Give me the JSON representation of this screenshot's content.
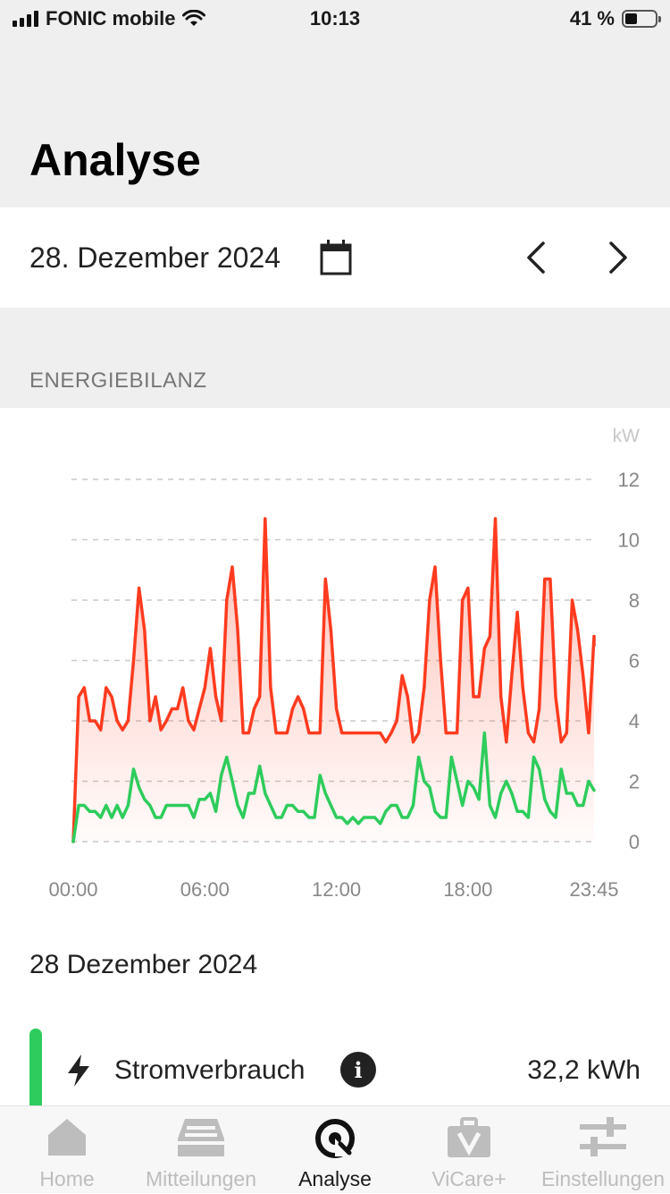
{
  "status_bar": {
    "carrier": "FONIC mobile",
    "time": "10:13",
    "battery_percent": "41 %",
    "battery_level": 0.41
  },
  "header": {
    "title": "Analyse"
  },
  "date_selector": {
    "date": "28. Dezember 2024"
  },
  "section": {
    "title": "ENERGIEBILANZ"
  },
  "chart_data": {
    "type": "area",
    "unit_label": "kW",
    "ylim": [
      0,
      12
    ],
    "y_ticks": [
      "12",
      "10",
      "8",
      "6",
      "4",
      "2",
      "0"
    ],
    "x_tick_labels": [
      "00:00",
      "06:00",
      "12:00",
      "18:00",
      "23:45"
    ],
    "xlim_hours": [
      0,
      23.75
    ],
    "grid": true,
    "colors": {
      "consumption": "#ff3b1f",
      "production": "#2ecc5c"
    },
    "series": [
      {
        "key": "consumption",
        "points": [
          [
            0,
            0
          ],
          [
            0.25,
            4.8
          ],
          [
            0.5,
            5.1
          ],
          [
            0.75,
            4.0
          ],
          [
            1.0,
            4.0
          ],
          [
            1.25,
            3.7
          ],
          [
            1.5,
            5.1
          ],
          [
            1.75,
            4.8
          ],
          [
            2.0,
            4.0
          ],
          [
            2.25,
            3.7
          ],
          [
            2.5,
            4.0
          ],
          [
            2.75,
            6.0
          ],
          [
            3.0,
            8.4
          ],
          [
            3.25,
            7.0
          ],
          [
            3.5,
            4.0
          ],
          [
            3.75,
            4.8
          ],
          [
            4.0,
            3.7
          ],
          [
            4.25,
            4.0
          ],
          [
            4.5,
            4.4
          ],
          [
            4.75,
            4.4
          ],
          [
            5.0,
            5.1
          ],
          [
            5.25,
            4.0
          ],
          [
            5.5,
            3.7
          ],
          [
            5.75,
            4.4
          ],
          [
            6.0,
            5.1
          ],
          [
            6.25,
            6.4
          ],
          [
            6.5,
            4.8
          ],
          [
            6.75,
            4.0
          ],
          [
            7.0,
            8.0
          ],
          [
            7.25,
            9.1
          ],
          [
            7.5,
            7.0
          ],
          [
            7.75,
            3.6
          ],
          [
            8.0,
            3.6
          ],
          [
            8.25,
            4.4
          ],
          [
            8.5,
            4.8
          ],
          [
            8.75,
            10.7
          ],
          [
            9.0,
            5.1
          ],
          [
            9.25,
            3.6
          ],
          [
            9.5,
            3.6
          ],
          [
            9.75,
            3.6
          ],
          [
            10.0,
            4.4
          ],
          [
            10.25,
            4.8
          ],
          [
            10.5,
            4.4
          ],
          [
            10.75,
            3.6
          ],
          [
            11.0,
            3.6
          ],
          [
            11.25,
            3.6
          ],
          [
            11.5,
            8.7
          ],
          [
            11.75,
            7.0
          ],
          [
            12.0,
            4.4
          ],
          [
            12.25,
            3.6
          ],
          [
            12.5,
            3.6
          ],
          [
            12.75,
            3.6
          ],
          [
            13.0,
            3.6
          ],
          [
            13.25,
            3.6
          ],
          [
            13.5,
            3.6
          ],
          [
            13.75,
            3.6
          ],
          [
            14.0,
            3.6
          ],
          [
            14.25,
            3.3
          ],
          [
            14.5,
            3.6
          ],
          [
            14.75,
            4.0
          ],
          [
            15.0,
            5.5
          ],
          [
            15.25,
            4.8
          ],
          [
            15.5,
            3.3
          ],
          [
            15.75,
            3.6
          ],
          [
            16.0,
            5.1
          ],
          [
            16.25,
            8.0
          ],
          [
            16.5,
            9.1
          ],
          [
            16.75,
            6.0
          ],
          [
            17.0,
            3.6
          ],
          [
            17.25,
            3.6
          ],
          [
            17.5,
            3.6
          ],
          [
            17.75,
            8.0
          ],
          [
            18.0,
            8.4
          ],
          [
            18.25,
            4.8
          ],
          [
            18.5,
            4.8
          ],
          [
            18.75,
            6.4
          ],
          [
            19.0,
            6.8
          ],
          [
            19.25,
            10.7
          ],
          [
            19.5,
            4.8
          ],
          [
            19.75,
            3.3
          ],
          [
            20.0,
            5.5
          ],
          [
            20.25,
            7.6
          ],
          [
            20.5,
            5.1
          ],
          [
            20.75,
            3.6
          ],
          [
            21.0,
            3.3
          ],
          [
            21.25,
            4.4
          ],
          [
            21.5,
            8.7
          ],
          [
            21.75,
            8.7
          ],
          [
            22.0,
            4.8
          ],
          [
            22.25,
            3.3
          ],
          [
            22.5,
            3.6
          ],
          [
            22.75,
            8.0
          ],
          [
            23.0,
            7.0
          ],
          [
            23.25,
            5.5
          ],
          [
            23.5,
            3.6
          ],
          [
            23.75,
            6.8
          ],
          [
            23.75,
            6.5
          ]
        ]
      },
      {
        "key": "production",
        "points": [
          [
            0,
            0
          ],
          [
            0.25,
            1.2
          ],
          [
            0.5,
            1.2
          ],
          [
            0.75,
            1.0
          ],
          [
            1.0,
            1.0
          ],
          [
            1.25,
            0.8
          ],
          [
            1.5,
            1.2
          ],
          [
            1.75,
            0.8
          ],
          [
            2.0,
            1.2
          ],
          [
            2.25,
            0.8
          ],
          [
            2.5,
            1.2
          ],
          [
            2.75,
            2.4
          ],
          [
            3.0,
            1.8
          ],
          [
            3.25,
            1.4
          ],
          [
            3.5,
            1.2
          ],
          [
            3.75,
            0.8
          ],
          [
            4.0,
            0.8
          ],
          [
            4.25,
            1.2
          ],
          [
            4.5,
            1.2
          ],
          [
            4.75,
            1.2
          ],
          [
            5.0,
            1.2
          ],
          [
            5.25,
            1.2
          ],
          [
            5.5,
            0.8
          ],
          [
            5.75,
            1.4
          ],
          [
            6.0,
            1.4
          ],
          [
            6.25,
            1.6
          ],
          [
            6.5,
            1.0
          ],
          [
            6.75,
            2.2
          ],
          [
            7.0,
            2.8
          ],
          [
            7.25,
            2.0
          ],
          [
            7.5,
            1.2
          ],
          [
            7.75,
            0.8
          ],
          [
            8.0,
            1.6
          ],
          [
            8.25,
            1.6
          ],
          [
            8.5,
            2.5
          ],
          [
            8.75,
            1.6
          ],
          [
            9.0,
            1.2
          ],
          [
            9.25,
            0.8
          ],
          [
            9.5,
            0.8
          ],
          [
            9.75,
            1.2
          ],
          [
            10.0,
            1.2
          ],
          [
            10.25,
            1.0
          ],
          [
            10.5,
            1.0
          ],
          [
            10.75,
            0.8
          ],
          [
            11.0,
            0.8
          ],
          [
            11.25,
            2.2
          ],
          [
            11.5,
            1.6
          ],
          [
            11.75,
            1.2
          ],
          [
            12.0,
            0.8
          ],
          [
            12.25,
            0.8
          ],
          [
            12.5,
            0.6
          ],
          [
            12.75,
            0.8
          ],
          [
            13.0,
            0.6
          ],
          [
            13.25,
            0.8
          ],
          [
            13.5,
            0.8
          ],
          [
            13.75,
            0.8
          ],
          [
            14.0,
            0.6
          ],
          [
            14.25,
            1.0
          ],
          [
            14.5,
            1.2
          ],
          [
            14.75,
            1.2
          ],
          [
            15.0,
            0.8
          ],
          [
            15.25,
            0.8
          ],
          [
            15.5,
            1.2
          ],
          [
            15.75,
            2.8
          ],
          [
            16.0,
            2.0
          ],
          [
            16.25,
            1.8
          ],
          [
            16.5,
            1.0
          ],
          [
            16.75,
            0.8
          ],
          [
            17.0,
            0.8
          ],
          [
            17.25,
            2.8
          ],
          [
            17.5,
            2.0
          ],
          [
            17.75,
            1.2
          ],
          [
            18.0,
            2.0
          ],
          [
            18.25,
            1.8
          ],
          [
            18.5,
            1.4
          ],
          [
            18.75,
            3.6
          ],
          [
            19.0,
            1.2
          ],
          [
            19.25,
            0.8
          ],
          [
            19.5,
            1.6
          ],
          [
            19.75,
            2.0
          ],
          [
            20.0,
            1.6
          ],
          [
            20.25,
            1.0
          ],
          [
            20.5,
            1.0
          ],
          [
            20.75,
            0.8
          ],
          [
            21.0,
            2.8
          ],
          [
            21.25,
            2.4
          ],
          [
            21.5,
            1.4
          ],
          [
            21.75,
            1.0
          ],
          [
            22.0,
            0.8
          ],
          [
            22.25,
            2.4
          ],
          [
            22.5,
            1.6
          ],
          [
            22.75,
            1.6
          ],
          [
            23.0,
            1.2
          ],
          [
            23.25,
            1.2
          ],
          [
            23.5,
            2.0
          ],
          [
            23.75,
            1.7
          ]
        ]
      }
    ]
  },
  "summary": {
    "date": "28 Dezember 2024",
    "items": [
      {
        "label": "Stromverbrauch",
        "value": "32,2 kWh",
        "color": "#2ecc5c",
        "icon": "bolt-icon"
      }
    ]
  },
  "tab_bar": {
    "tabs": [
      {
        "label": "Home",
        "icon": "home-icon",
        "active": false
      },
      {
        "label": "Mitteilungen",
        "icon": "inbox-icon",
        "active": false
      },
      {
        "label": "Analyse",
        "icon": "analyse-icon",
        "active": true
      },
      {
        "label": "ViCare+",
        "icon": "briefcase-icon",
        "active": false
      },
      {
        "label": "Einstellungen",
        "icon": "sliders-icon",
        "active": false
      }
    ]
  }
}
